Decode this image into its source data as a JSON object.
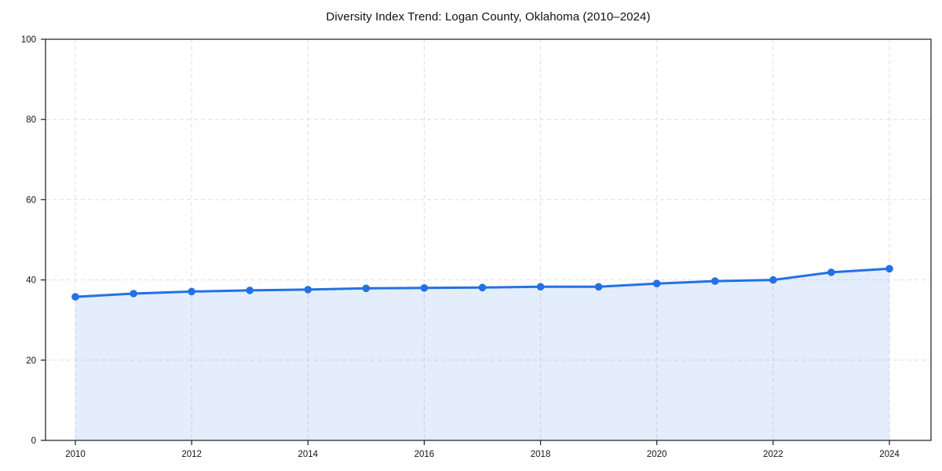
{
  "chart_data": {
    "type": "line",
    "title": "Diversity Index Trend: Logan County, Oklahoma (2010–2024)",
    "x": [
      2010,
      2011,
      2012,
      2013,
      2014,
      2015,
      2016,
      2017,
      2018,
      2019,
      2020,
      2021,
      2022,
      2023,
      2024
    ],
    "y": [
      35.8,
      36.6,
      37.1,
      37.4,
      37.6,
      37.9,
      38.0,
      38.1,
      38.3,
      38.3,
      39.1,
      39.7,
      40.0,
      41.9,
      42.8
    ],
    "xticks": [
      2010,
      2012,
      2014,
      2016,
      2018,
      2020,
      2022,
      2024
    ],
    "yticks": [
      0,
      20,
      40,
      60,
      80,
      100
    ],
    "ylim": [
      0,
      100
    ],
    "xlabel": "",
    "ylabel": "",
    "grid": true,
    "grid_style": "dashed",
    "legend": "none",
    "marker": "circle",
    "area_fill": true,
    "colors": {
      "line": "#2371e4",
      "marker": "#2371e4",
      "area": "#2371e4",
      "area_apparent": "#e0eafa",
      "grid": "#dedede",
      "axis": "#1c1c1c",
      "text": "#111111",
      "background": "#ffffff"
    },
    "area_fill_opacity": 0.13
  }
}
